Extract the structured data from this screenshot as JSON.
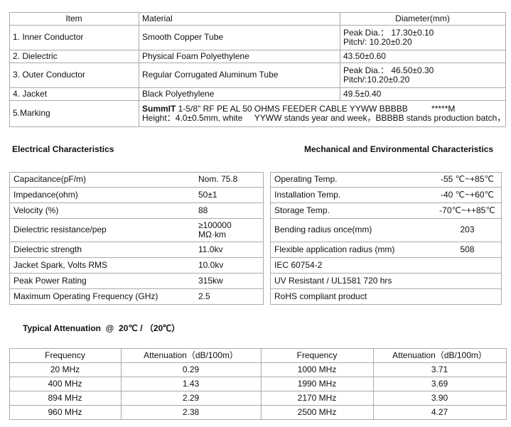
{
  "construction": {
    "header": [
      "Item",
      "Material",
      "Diameter(mm)"
    ],
    "rows": [
      [
        "1. Inner Conductor",
        "Smooth Copper Tube",
        [
          "Peak Dia.： 17.30±0.10",
          "Pitch/: 10.20±0.20"
        ]
      ],
      [
        "2. Dielectric",
        "Physical Foam Polyethylene",
        [
          "43.50±0.60"
        ]
      ],
      [
        "3. Outer Conductor",
        "Regular Corrugated Aluminum Tube",
        [
          "Peak Dia.： 46.50±0.30",
          "Pitch/:10.20±0.20"
        ]
      ],
      [
        "4. Jacket",
        "Black Polyethylene",
        [
          "49.5±0.40"
        ]
      ]
    ],
    "marking": {
      "item": "5.Marking",
      "brand": "SummIT",
      "line1": " 1-5/8\" RF PE AL 50 OHMS FEEDER CABLE YYWW BBBBB          *****M",
      "line2": "Height：4.0±0.5mm, white     YYWW stands year and week，BBBBB stands production batch，"
    }
  },
  "electrical": {
    "title": "Electrical Characteristics",
    "rows": [
      [
        "Capacitance(pF/m)",
        [
          "Nom. 75.8"
        ]
      ],
      [
        "Impedance(ohm)",
        [
          "50±1"
        ]
      ],
      [
        "Velocity (%)",
        [
          "88"
        ]
      ],
      [
        "Dielectric resistance/pep",
        [
          "≥100000",
          "MΩ·km"
        ]
      ],
      [
        "Dielectric strength",
        [
          "11.0kv"
        ]
      ],
      [
        "Jacket Spark, Volts RMS",
        [
          "10.0kv"
        ]
      ],
      [
        "Peak Power Rating",
        [
          "315kw"
        ]
      ],
      [
        "Maximum Operating Frequency (GHz)",
        [
          "2.5"
        ]
      ]
    ]
  },
  "mechanical": {
    "title": "Mechanical and Environmental Characteristics",
    "rows": [
      [
        "Operating Temp.",
        "-55 ℃~+85℃"
      ],
      [
        "Installation Temp.",
        "-40 ℃~+60℃"
      ],
      [
        "Storage Temp.",
        "-70℃~++85℃"
      ],
      [
        "Bending radius once(mm)",
        "203"
      ],
      [
        "Flexible application radius (mm)",
        "508"
      ],
      [
        "IEC 60754-2",
        ""
      ],
      [
        "UV Resistant / UL1581 720 hrs",
        ""
      ],
      [
        "RoHS compliant product",
        ""
      ]
    ]
  },
  "attenuation": {
    "title": "Typical Attenuation  @  20℃ / （20℃）",
    "header": [
      "Frequency",
      "Attenuation（dB/100m）",
      "Frequency",
      "Attenuation（dB/100m）"
    ],
    "rows": [
      [
        "20 MHz",
        "0.29",
        "1000 MHz",
        "3.71"
      ],
      [
        "400 MHz",
        "1.43",
        "1990 MHz",
        "3.69"
      ],
      [
        "894 MHz",
        "2.29",
        "2170 MHz",
        "3.90"
      ],
      [
        "960 MHz",
        "2.38",
        "2500 MHz",
        "4.27"
      ]
    ]
  }
}
